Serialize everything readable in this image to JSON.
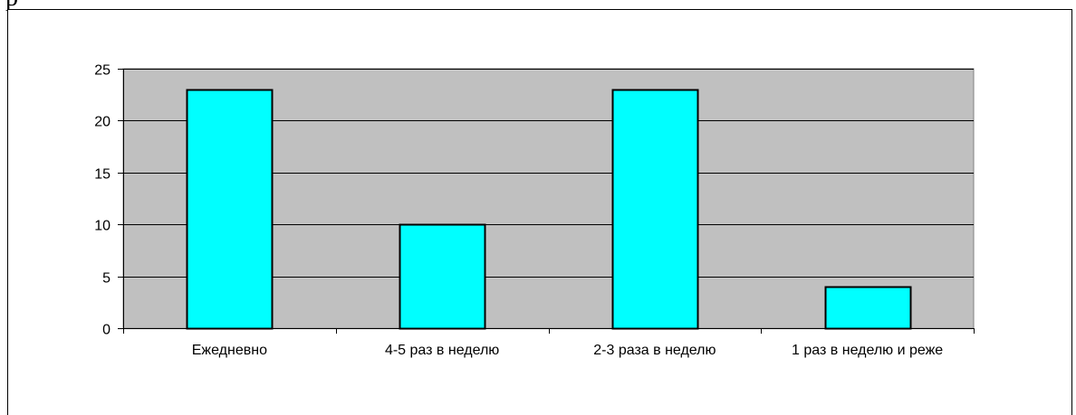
{
  "header": {
    "partial_text": "р"
  },
  "colors": {
    "plot_background": "#c0c0c0",
    "bar_fill": "#00ffff",
    "bar_stroke": "#000000",
    "gridline": "#000000"
  },
  "chart_data": {
    "type": "bar",
    "categories": [
      "Ежедневно",
      "4-5 раз в неделю",
      "2-3 раза в неделю",
      "1 раз в неделю и реже"
    ],
    "values": [
      23,
      10,
      23,
      4
    ],
    "title": "",
    "xlabel": "",
    "ylabel": "",
    "ylim": [
      0,
      25
    ],
    "yticks": [
      0,
      5,
      10,
      15,
      20,
      25
    ],
    "grid": true,
    "legend": "none"
  }
}
